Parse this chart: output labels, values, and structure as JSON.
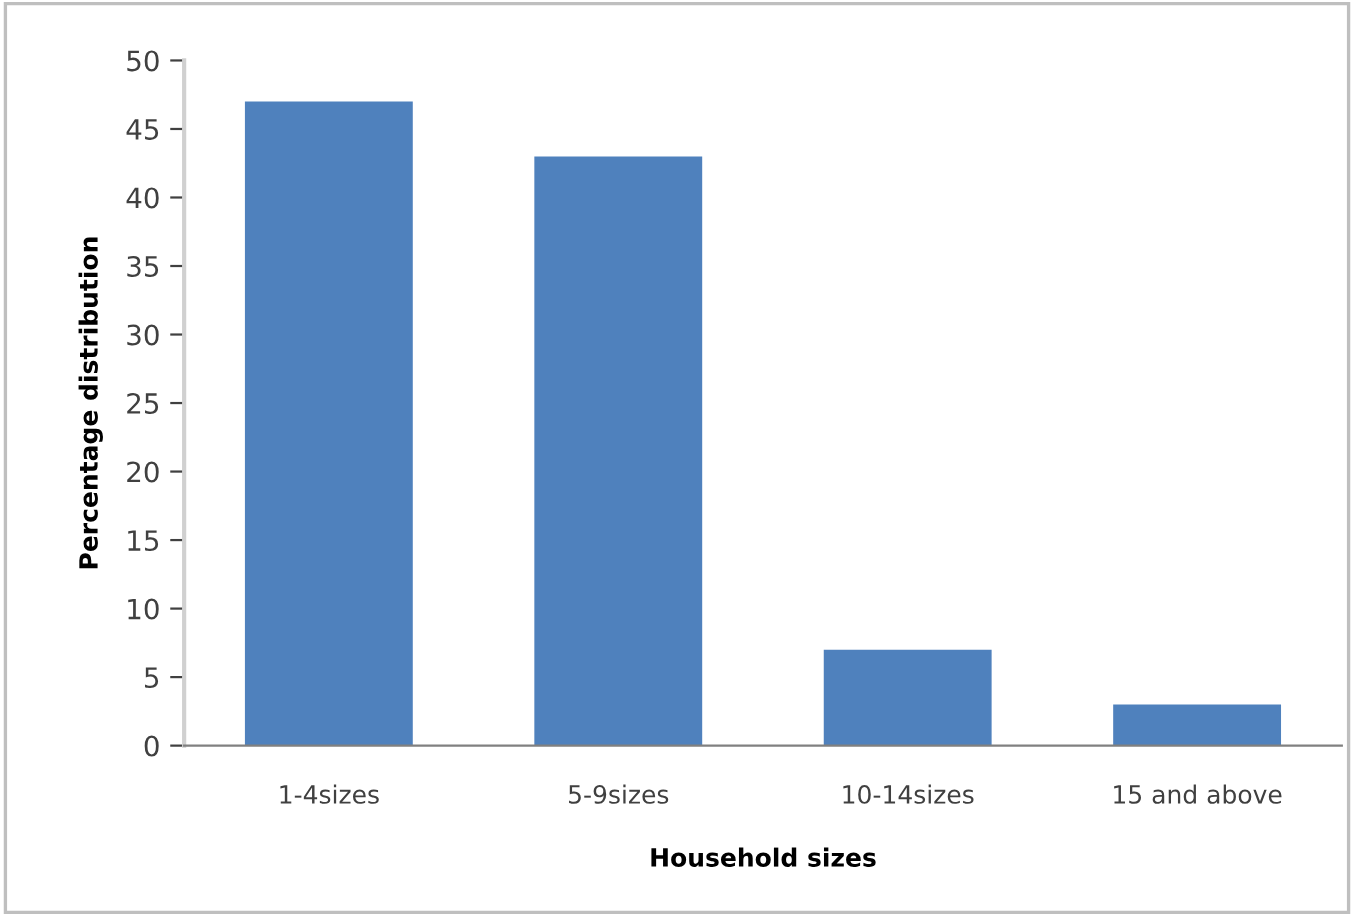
{
  "chart_data": {
    "type": "bar",
    "xlabel": "Household sizes",
    "ylabel": "Percentage distribution",
    "categories": [
      "1-4sizes",
      "5-9sizes",
      "10-14sizes",
      "15 and above"
    ],
    "values": [
      47,
      43,
      7,
      3
    ],
    "color": "#4f81bd",
    "ylim": [
      0,
      50
    ],
    "yticks": [
      0,
      5,
      10,
      15,
      20,
      25,
      30,
      35,
      40,
      45,
      50
    ],
    "grid": false,
    "legend": false
  }
}
